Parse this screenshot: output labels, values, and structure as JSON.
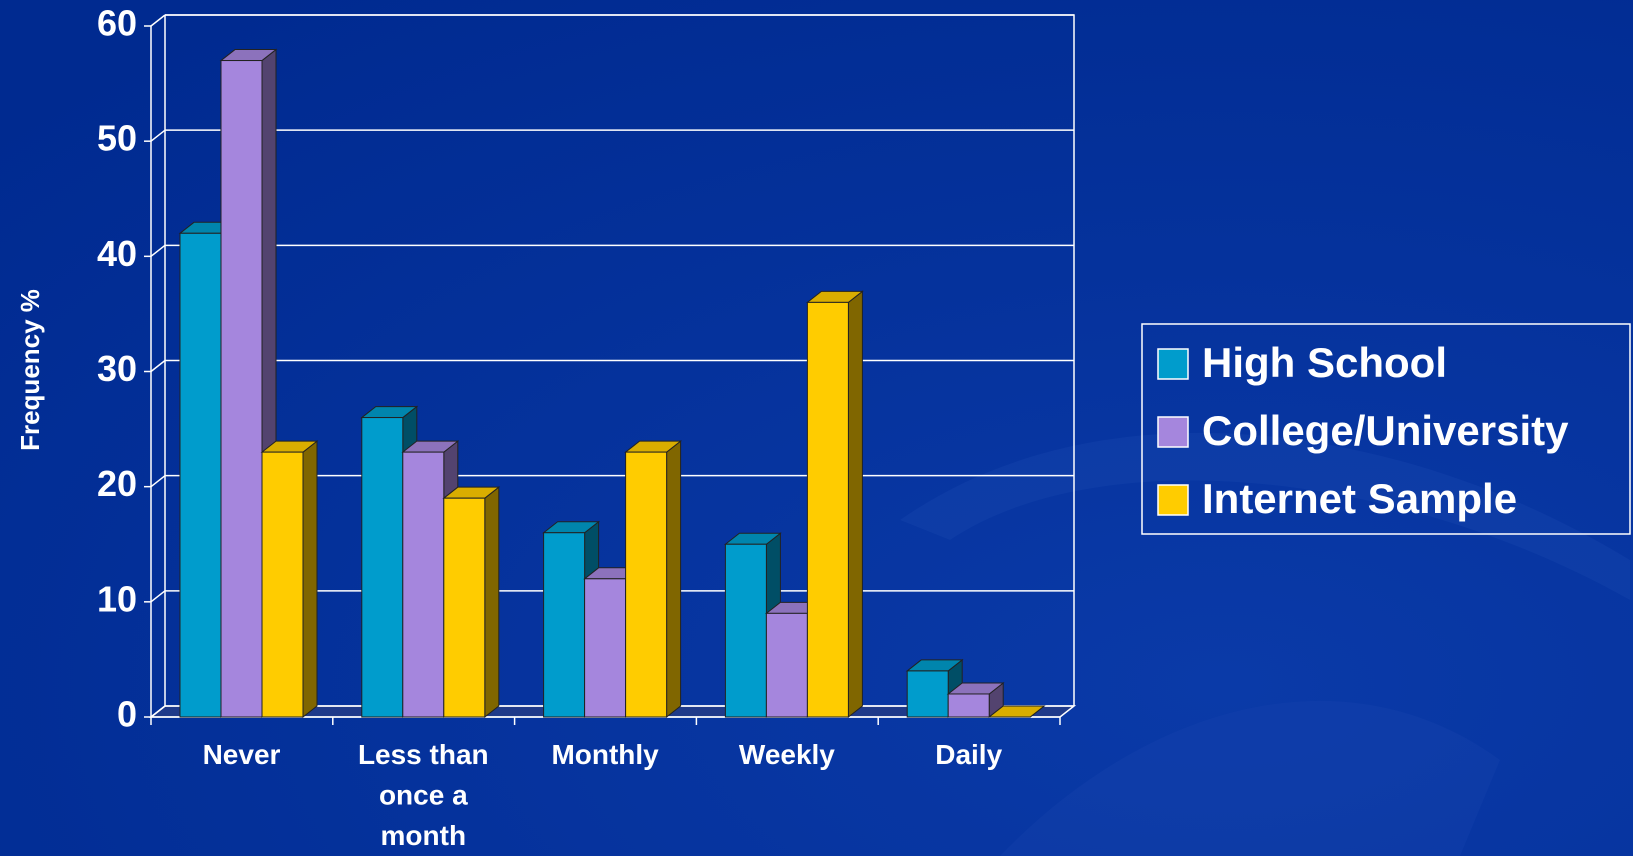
{
  "chart_data": {
    "type": "bar3d",
    "y_label": "Frequency %",
    "categories": [
      "Never",
      "Less than once a month",
      "Monthly",
      "Weekly",
      "Daily"
    ],
    "series": [
      {
        "name": "High School",
        "color": "#009ccc",
        "values": [
          42,
          26,
          16,
          15,
          4
        ]
      },
      {
        "name": "College/University",
        "color": "#a586dd",
        "values": [
          57,
          23,
          12,
          9,
          2
        ]
      },
      {
        "name": "Internet Sample",
        "color": "#ffcc00",
        "values": [
          23,
          19,
          23,
          36,
          0
        ]
      }
    ],
    "ylim": [
      0,
      60
    ],
    "yticks": [
      0,
      10,
      20,
      30,
      40,
      50,
      60
    ],
    "grid": true,
    "legend": "right"
  }
}
